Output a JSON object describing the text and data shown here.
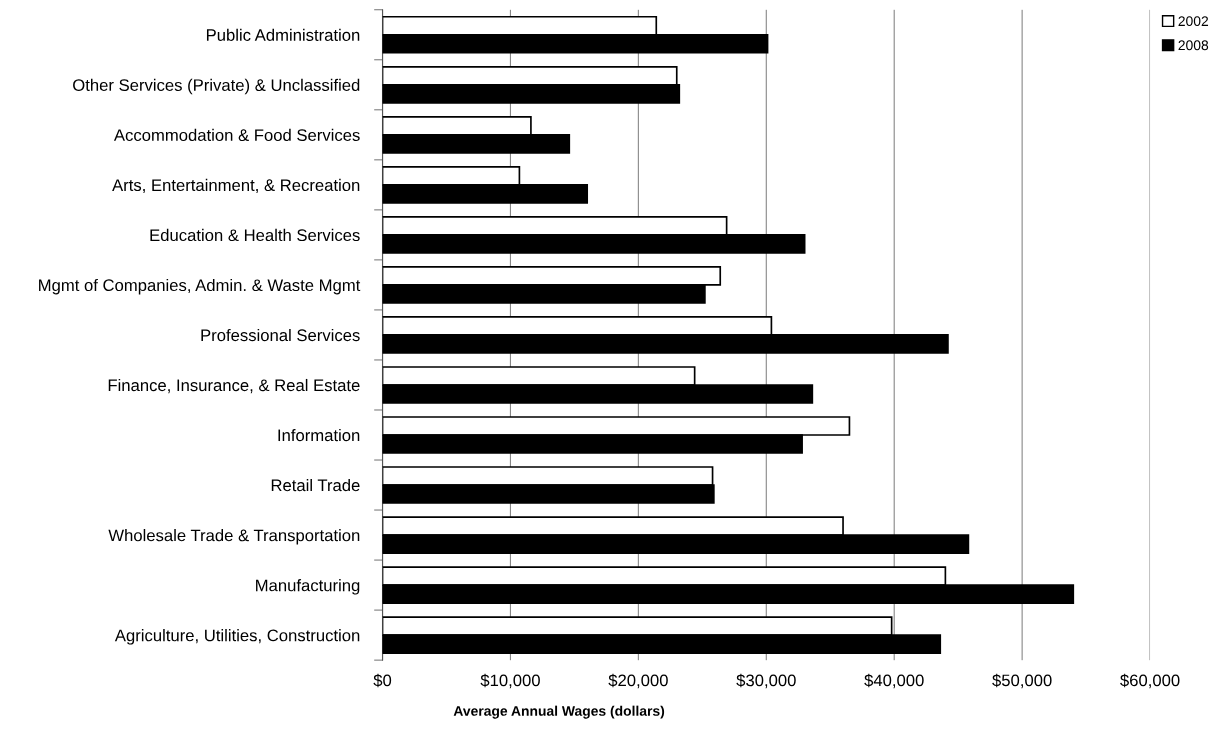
{
  "chart_data": {
    "type": "bar",
    "orientation": "horizontal",
    "xlabel": "Average Annual Wages (dollars)",
    "categories": [
      "Public Administration",
      "Other Services (Private) & Unclassified",
      "Accommodation & Food Services",
      "Arts, Entertainment, & Recreation",
      "Education & Health Services",
      "Mgmt of Companies, Admin. & Waste Mgmt",
      "Professional Services",
      "Finance, Insurance, & Real Estate",
      "Information",
      "Retail Trade",
      "Wholesale Trade & Transportation",
      "Manufacturing",
      "Agriculture, Utilities, Construction"
    ],
    "series": [
      {
        "name": "2002",
        "color": "#ffffff",
        "values": [
          21400,
          23000,
          11600,
          10700,
          26900,
          26400,
          30400,
          24400,
          36500,
          25800,
          36000,
          44000,
          39800
        ]
      },
      {
        "name": "2008",
        "color": "#000000",
        "values": [
          30100,
          23200,
          14600,
          16000,
          33000,
          25200,
          44200,
          33600,
          32800,
          25900,
          45800,
          54000,
          43600
        ]
      }
    ],
    "xlim": [
      0,
      60000
    ],
    "xticks": [
      {
        "value": 0,
        "label": "$0"
      },
      {
        "value": 10000,
        "label": "$10,000"
      },
      {
        "value": 20000,
        "label": "$20,000"
      },
      {
        "value": 30000,
        "label": "$30,000"
      },
      {
        "value": 40000,
        "label": "$40,000"
      },
      {
        "value": 50000,
        "label": "$50,000"
      },
      {
        "value": 60000,
        "label": "$60,000"
      }
    ],
    "grid": "x",
    "legend": "top right"
  }
}
